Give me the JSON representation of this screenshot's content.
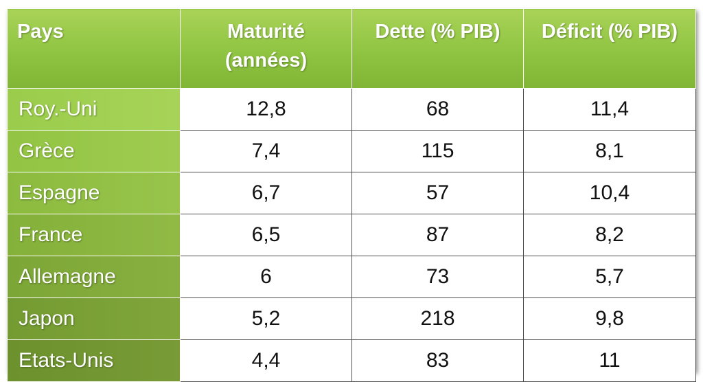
{
  "chart_data": {
    "type": "table",
    "columns": [
      "Pays",
      "Maturité (années)",
      "Dette (% PIB)",
      "Déficit (% PIB)"
    ],
    "rows": [
      {
        "pays": "Roy.-Uni",
        "maturite": "12,8",
        "dette": "68",
        "deficit": "11,4"
      },
      {
        "pays": "Grèce",
        "maturite": "7,4",
        "dette": "115",
        "deficit": "8,1"
      },
      {
        "pays": "Espagne",
        "maturite": "6,7",
        "dette": "57",
        "deficit": "10,4"
      },
      {
        "pays": "France",
        "maturite": "6,5",
        "dette": "87",
        "deficit": "8,2"
      },
      {
        "pays": "Allemagne",
        "maturite": "6",
        "dette": "73",
        "deficit": "5,7"
      },
      {
        "pays": "Japon",
        "maturite": "5,2",
        "dette": "218",
        "deficit": "9,8"
      },
      {
        "pays": "Etats-Unis",
        "maturite": "4,4",
        "dette": "83",
        "deficit": "11"
      }
    ]
  },
  "colors": {
    "header_green": "#8fc442",
    "row_header_green_top": "#9bcc4b",
    "row_header_green_bottom": "#6c912d",
    "cell_border": "#4d4d4d"
  }
}
